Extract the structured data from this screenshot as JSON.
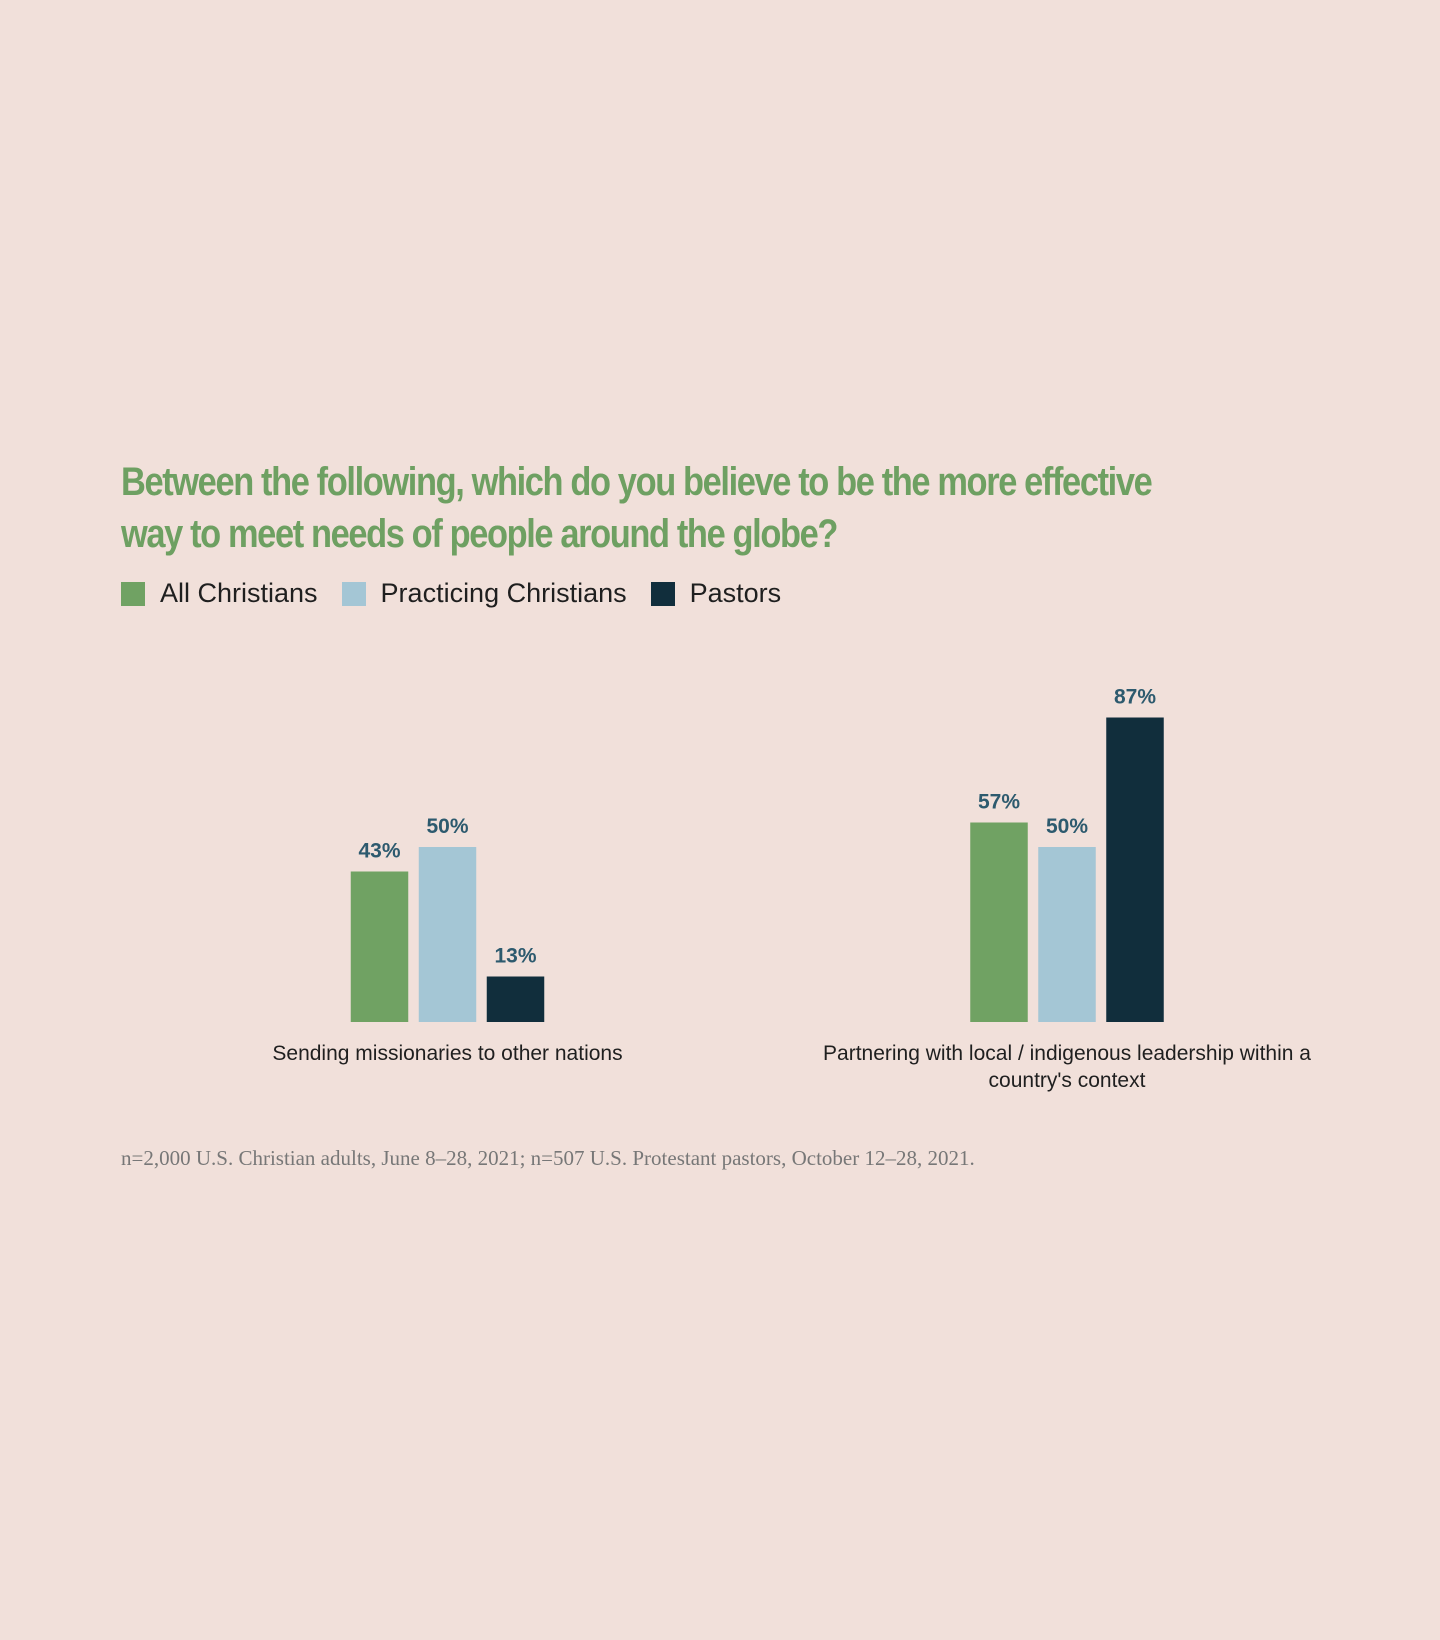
{
  "chart_data": {
    "type": "bar",
    "title": "Between the following, which do you believe to be the more effective way to meet needs of people around the globe?",
    "categories": [
      "Sending missionaries to other nations",
      "Partnering with local / indigenous leadership within a country's context"
    ],
    "series": [
      {
        "name": "All Christians",
        "color": "#70a263",
        "values": [
          43,
          57
        ],
        "value_labels": [
          "43%",
          "57%"
        ]
      },
      {
        "name": "Practicing Christians",
        "color": "#a4c6d5",
        "values": [
          50,
          50
        ],
        "value_labels": [
          "50%",
          "50%"
        ]
      },
      {
        "name": "Pastors",
        "color": "#112e3c",
        "values": [
          13,
          87
        ],
        "value_labels": [
          "13%",
          "87%"
        ]
      }
    ],
    "note": "n=2,000 U.S. Christian adults, June 8–28, 2021; n=507 U.S. Protestant pastors, October 12–28, 2021."
  }
}
